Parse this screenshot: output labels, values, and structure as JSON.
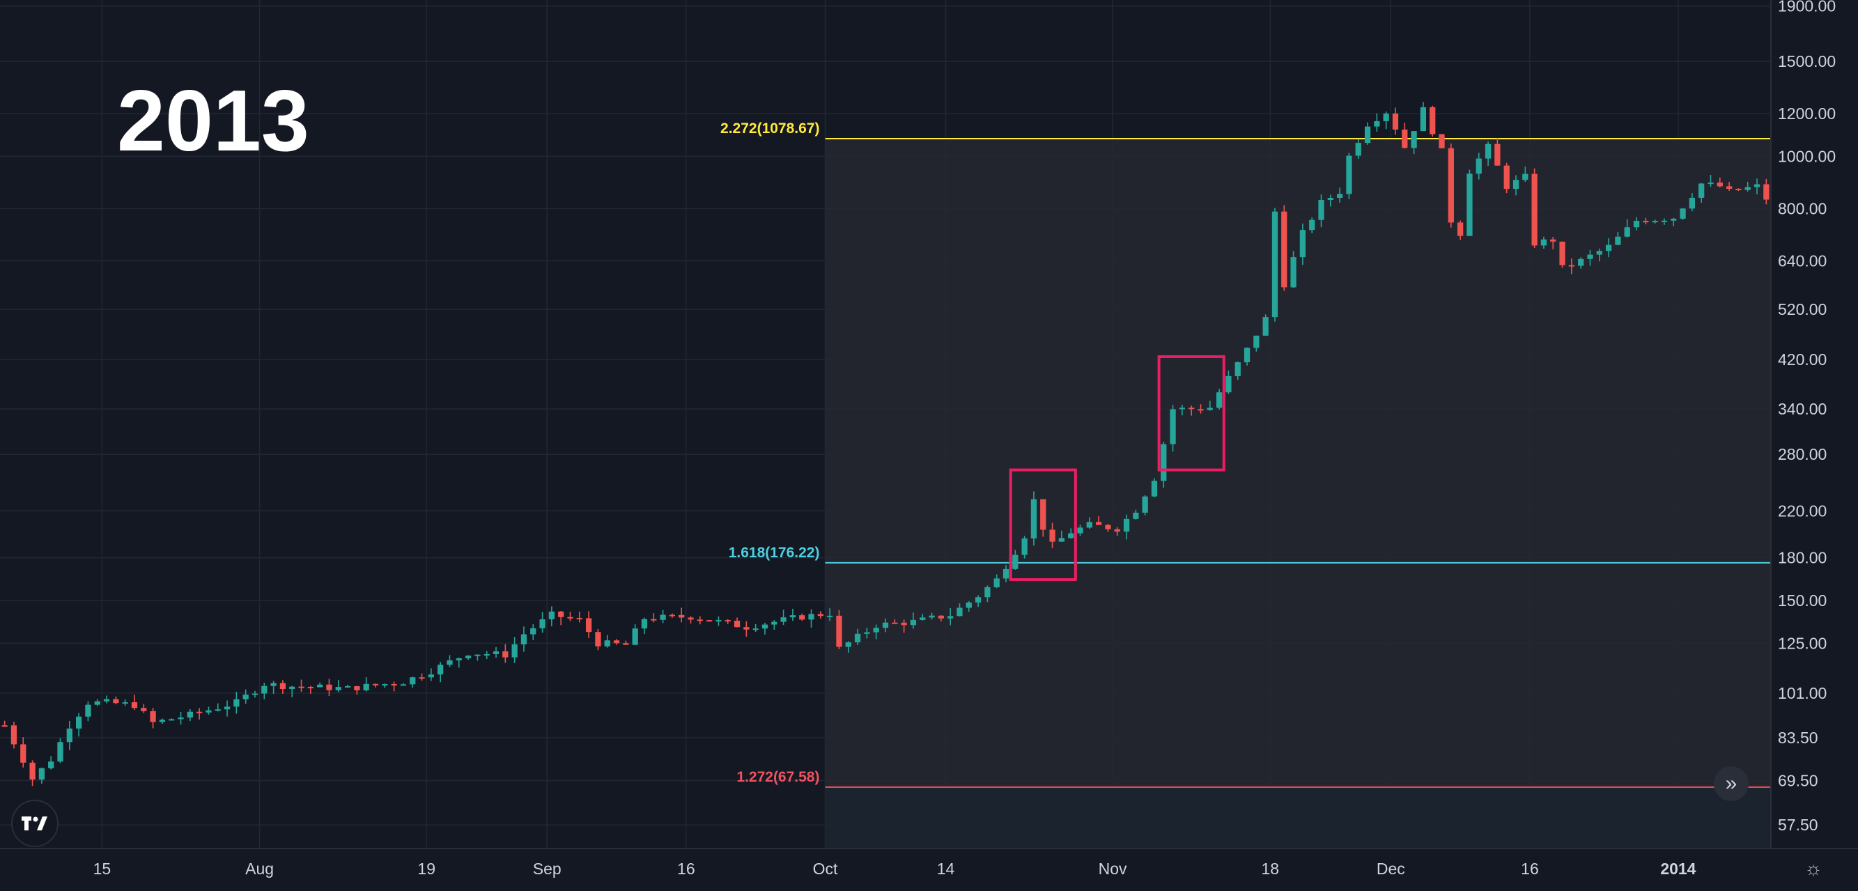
{
  "watermark": "2013",
  "colors": {
    "background": "#141823",
    "grid": "#232733",
    "up": "#26a69a",
    "down": "#ef5350",
    "fib_top": "#ffeb3b",
    "fib_mid": "#4dd0e1",
    "fib_low": "#f05260",
    "box": "#e91e63",
    "shade": "#262830"
  },
  "icons": {
    "logo": "tradingview-logo",
    "scroll": "double-chevron-right-icon",
    "settings": "gear-icon"
  },
  "chart_data": {
    "type": "candlestick",
    "title": "",
    "xlabel": "",
    "ylabel": "",
    "scale": "log",
    "ylim": [
      52,
      1950
    ],
    "xlim": [
      "2013-07-04",
      "2014-01-11"
    ],
    "y_ticks": [
      "1900.00",
      "1500.00",
      "1200.00",
      "1000.00",
      "800.00",
      "640.00",
      "520.00",
      "420.00",
      "340.00",
      "280.00",
      "220.00",
      "180.00",
      "150.00",
      "125.00",
      "101.00",
      "83.50",
      "69.50",
      "57.50"
    ],
    "x_ticks": [
      {
        "label": "15",
        "date": "2013-07-15"
      },
      {
        "label": "Aug",
        "date": "2013-08-01"
      },
      {
        "label": "19",
        "date": "2013-08-19"
      },
      {
        "label": "Sep",
        "date": "2013-09-01"
      },
      {
        "label": "16",
        "date": "2013-09-16"
      },
      {
        "label": "Oct",
        "date": "2013-10-01"
      },
      {
        "label": "14",
        "date": "2013-10-14"
      },
      {
        "label": "Nov",
        "date": "2013-11-01"
      },
      {
        "label": "18",
        "date": "2013-11-18"
      },
      {
        "label": "Dec",
        "date": "2013-12-01"
      },
      {
        "label": "16",
        "date": "2013-12-16"
      },
      {
        "label": "2014",
        "date": "2014-01-01"
      }
    ],
    "fib_levels": [
      {
        "label": "2.272(1078.67)",
        "value": 1078.67
      },
      {
        "label": "1.618(176.22)",
        "value": 176.22
      },
      {
        "label": "1.272(67.58)",
        "value": 67.58
      }
    ],
    "fib_range_start": "2013-10-01",
    "highlight_boxes": [
      {
        "start": "2013-10-21",
        "end": "2013-10-27",
        "low": 164,
        "high": 262
      },
      {
        "start": "2013-11-06",
        "end": "2013-11-12",
        "low": 262,
        "high": 425
      }
    ],
    "close_keypoints": [
      [
        "2013-07-04",
        88
      ],
      [
        "2013-07-06",
        76
      ],
      [
        "2013-07-07",
        70
      ],
      [
        "2013-07-09",
        76
      ],
      [
        "2013-07-11",
        88
      ],
      [
        "2013-07-13",
        97
      ],
      [
        "2013-07-15",
        97
      ],
      [
        "2013-07-18",
        96
      ],
      [
        "2013-07-20",
        89
      ],
      [
        "2013-07-24",
        92
      ],
      [
        "2013-07-29",
        97
      ],
      [
        "2013-08-01",
        105
      ],
      [
        "2013-08-04",
        104
      ],
      [
        "2013-08-10",
        103
      ],
      [
        "2013-08-16",
        106
      ],
      [
        "2013-08-19",
        111
      ],
      [
        "2013-08-23",
        120
      ],
      [
        "2013-08-27",
        119
      ],
      [
        "2013-08-29",
        130
      ],
      [
        "2013-09-01",
        141
      ],
      [
        "2013-09-04",
        138
      ],
      [
        "2013-09-06",
        125
      ],
      [
        "2013-09-09",
        124
      ],
      [
        "2013-09-11",
        139
      ],
      [
        "2013-09-16",
        140
      ],
      [
        "2013-09-22",
        134
      ],
      [
        "2013-09-28",
        140
      ],
      [
        "2013-10-01",
        142
      ],
      [
        "2013-10-02",
        122
      ],
      [
        "2013-10-06",
        135
      ],
      [
        "2013-10-10",
        137
      ],
      [
        "2013-10-14",
        141
      ],
      [
        "2013-10-17",
        153
      ],
      [
        "2013-10-19",
        164
      ],
      [
        "2013-10-21",
        185
      ],
      [
        "2013-10-22",
        198
      ],
      [
        "2013-10-23",
        230
      ],
      [
        "2013-10-24",
        205
      ],
      [
        "2013-10-25",
        190
      ],
      [
        "2013-10-27",
        201
      ],
      [
        "2013-10-29",
        207
      ],
      [
        "2013-11-01",
        204
      ],
      [
        "2013-11-03",
        221
      ],
      [
        "2013-11-05",
        253
      ],
      [
        "2013-11-07",
        340
      ],
      [
        "2013-11-09",
        340
      ],
      [
        "2013-11-11",
        342
      ],
      [
        "2013-11-12",
        365
      ],
      [
        "2013-11-15",
        438
      ],
      [
        "2013-11-17",
        500
      ],
      [
        "2013-11-18",
        790
      ],
      [
        "2013-11-19",
        580
      ],
      [
        "2013-11-21",
        720
      ],
      [
        "2013-11-23",
        820
      ],
      [
        "2013-11-25",
        860
      ],
      [
        "2013-11-26",
        1000
      ],
      [
        "2013-11-28",
        1150
      ],
      [
        "2013-11-30",
        1210
      ],
      [
        "2013-12-01",
        1130
      ],
      [
        "2013-12-02",
        1040
      ],
      [
        "2013-12-04",
        1220
      ],
      [
        "2013-12-06",
        1020
      ],
      [
        "2013-12-07",
        760
      ],
      [
        "2013-12-08",
        720
      ],
      [
        "2013-12-09",
        940
      ],
      [
        "2013-12-11",
        1040
      ],
      [
        "2013-12-13",
        880
      ],
      [
        "2013-12-15",
        915
      ],
      [
        "2013-12-16",
        690
      ],
      [
        "2013-12-18",
        700
      ],
      [
        "2013-12-19",
        620
      ],
      [
        "2013-12-21",
        640
      ],
      [
        "2013-12-24",
        680
      ],
      [
        "2013-12-27",
        760
      ],
      [
        "2013-12-31",
        770
      ],
      [
        "2014-01-03",
        890
      ],
      [
        "2014-01-05",
        880
      ],
      [
        "2014-01-06",
        860
      ],
      [
        "2014-01-09",
        880
      ],
      [
        "2014-01-10",
        835
      ]
    ]
  }
}
